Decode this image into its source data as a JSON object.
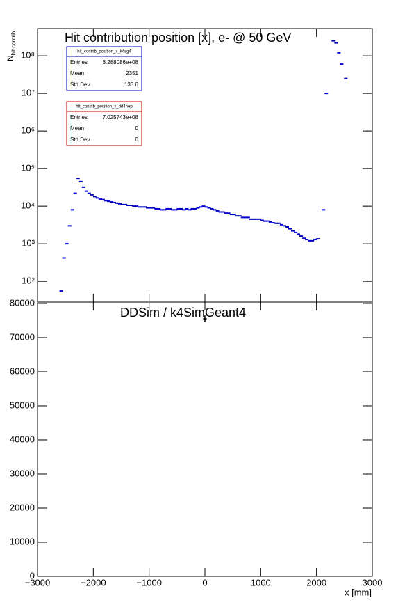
{
  "chart_data": [
    {
      "type": "scatter",
      "title": "Hit contribution position [x],  e- @ 50 GeV",
      "y_label": "N",
      "y_label_sub": "hit contrib.",
      "log_y": true,
      "xlim": [
        -3000,
        3000
      ],
      "ylim": [
        28,
        530000000
      ],
      "xticks": [
        -3000,
        -2000,
        -1000,
        0,
        1000,
        2000,
        3000
      ],
      "yticks": [
        {
          "value": 100,
          "label": "10²"
        },
        {
          "value": 1000,
          "label": "10³"
        },
        {
          "value": 10000,
          "label": "10⁴"
        },
        {
          "value": 100000,
          "label": "10⁵"
        },
        {
          "value": 1000000,
          "label": "10⁶"
        },
        {
          "value": 10000000,
          "label": "10⁷"
        },
        {
          "value": 100000000,
          "label": "10⁸"
        }
      ],
      "series": [
        {
          "color": "#0000cc",
          "x": [
            -2575,
            -2525,
            -2475,
            -2425,
            -2375,
            -2325,
            -2275,
            -2225,
            -2175,
            -2125,
            -2075,
            -2025,
            -1975,
            -1925,
            -1875,
            -1825,
            -1775,
            -1725,
            -1675,
            -1625,
            -1575,
            -1525,
            -1475,
            -1425,
            -1375,
            -1325,
            -1275,
            -1225,
            -1175,
            -1125,
            -1075,
            -1025,
            -975,
            -925,
            -875,
            -825,
            -775,
            -725,
            -675,
            -625,
            -575,
            -525,
            -475,
            -425,
            -375,
            -325,
            -275,
            -225,
            -175,
            -125,
            -75,
            -25,
            25,
            75,
            125,
            175,
            225,
            275,
            325,
            375,
            425,
            475,
            525,
            575,
            625,
            675,
            725,
            775,
            825,
            875,
            925,
            975,
            1025,
            1075,
            1125,
            1175,
            1225,
            1275,
            1325,
            1375,
            1425,
            1475,
            1525,
            1575,
            1625,
            1675,
            1725,
            1775,
            1825,
            1875,
            1925,
            1975,
            2025,
            2125,
            2175,
            2300,
            2350,
            2400,
            2450,
            2525
          ],
          "values": [
            55,
            420,
            1000,
            3000,
            8000,
            22000,
            55000,
            45000,
            32000,
            25000,
            22000,
            20000,
            18000,
            16500,
            15500,
            15000,
            14000,
            13500,
            13000,
            12500,
            12000,
            11500,
            11000,
            11000,
            10500,
            10500,
            10000,
            10000,
            9500,
            9500,
            9500,
            9000,
            9000,
            9000,
            8500,
            8500,
            8000,
            8000,
            8500,
            8500,
            8000,
            8000,
            8500,
            8500,
            8000,
            8500,
            8000,
            8500,
            8500,
            9000,
            9500,
            10000,
            9500,
            9000,
            8500,
            8000,
            7500,
            7000,
            7000,
            6500,
            6500,
            6000,
            6000,
            5500,
            5500,
            5000,
            5000,
            5000,
            4500,
            4500,
            4500,
            4500,
            4200,
            4000,
            4000,
            3800,
            3600,
            3500,
            3500,
            3200,
            3000,
            2800,
            2500,
            2200,
            2000,
            1800,
            1600,
            1400,
            1300,
            1200,
            1200,
            1300,
            1350,
            8000,
            10000000,
            250000000,
            220000000,
            120000000,
            60000000,
            25000000
          ]
        }
      ],
      "stats": [
        {
          "name": "hit_contrib_position_x_k4sg4",
          "color": "#0000cc",
          "rows": [
            [
              "Entries",
              "8.288086e+08"
            ],
            [
              "Mean",
              "2351"
            ],
            [
              "Std Dev",
              "133.6"
            ]
          ]
        },
        {
          "name": "hit_contrib_position_x_dd4hep",
          "color": "#cc0000",
          "rows": [
            [
              "Entries",
              "7.025743e+08"
            ],
            [
              "Mean",
              "0"
            ],
            [
              "Std Dev",
              "0"
            ]
          ]
        }
      ]
    },
    {
      "type": "scatter",
      "title": "DDSim / k4SimGeant4",
      "x_label": "x [mm]",
      "xlim": [
        -3000,
        3000
      ],
      "ylim": [
        0,
        80400
      ],
      "xticks": [
        {
          "value": -3000,
          "label": "−3000"
        },
        {
          "value": -2000,
          "label": "−2000"
        },
        {
          "value": -1000,
          "label": "−1000"
        },
        0,
        1000,
        2000,
        3000
      ],
      "yticks": [
        0,
        10000,
        20000,
        30000,
        40000,
        50000,
        60000,
        70000,
        80000
      ],
      "series": [
        {
          "color": "#000000",
          "x": [
            0
          ],
          "values": [
            75500
          ],
          "errors": [
            1000
          ]
        }
      ]
    }
  ]
}
